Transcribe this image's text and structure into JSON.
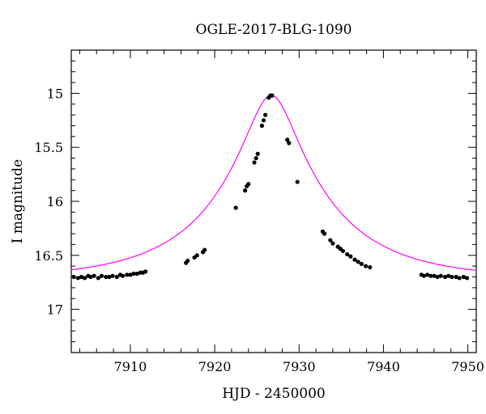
{
  "chart_data": {
    "type": "scatter",
    "title": "OGLE-2017-BLG-1090",
    "xlabel": "HJD - 2450000",
    "ylabel": "I magnitude",
    "xlim": [
      7903,
      7951
    ],
    "ylim": [
      17.4,
      14.6
    ],
    "y_inverted": true,
    "x_ticks": [
      7910,
      7920,
      7930,
      7940,
      7950
    ],
    "y_ticks": [
      15,
      15.5,
      16,
      16.5,
      17
    ],
    "x_tick_labels": [
      "7910",
      "7920",
      "7930",
      "7940",
      "7950"
    ],
    "y_tick_labels": [
      "15",
      "15.5",
      "16",
      "16.5",
      "17"
    ],
    "grid": false,
    "colors": {
      "points": "#000000",
      "model": "#ff00ff"
    },
    "model": {
      "name": "",
      "t0": 7926.7,
      "baseline_mag": 16.72,
      "peak_mag": 15.02,
      "tE": 13.3
    },
    "series": [
      {
        "name": "",
        "x": [
          7903.3,
          7903.8,
          7904.2,
          7904.6,
          7905.0,
          7905.3,
          7905.7,
          7906.2,
          7906.6,
          7907.1,
          7907.5,
          7907.9,
          7908.4,
          7908.8,
          7909.1,
          7909.6,
          7910.0,
          7910.4,
          7910.8,
          7911.2,
          7911.5,
          7911.8,
          7916.6,
          7916.8,
          7917.6,
          7917.9,
          7918.6,
          7918.8,
          7922.5,
          7923.6,
          7923.8,
          7924.0,
          7924.7,
          7924.9,
          7925.1,
          7925.6,
          7925.8,
          7926.0,
          7926.4,
          7926.6,
          7926.8,
          7928.6,
          7928.8,
          7929.8,
          7932.8,
          7933.0,
          7933.7,
          7934.0,
          7934.6,
          7934.9,
          7935.2,
          7935.7,
          7936.1,
          7936.6,
          7937.0,
          7937.4,
          7937.9,
          7938.4,
          7944.5,
          7944.8,
          7945.2,
          7945.6,
          7946.0,
          7946.4,
          7946.8,
          7947.3,
          7947.7,
          7948.1,
          7948.6,
          7949.0,
          7949.5,
          7949.9
        ],
        "y": [
          16.7,
          16.71,
          16.7,
          16.71,
          16.69,
          16.7,
          16.69,
          16.71,
          16.69,
          16.7,
          16.7,
          16.69,
          16.7,
          16.68,
          16.69,
          16.68,
          16.68,
          16.67,
          16.67,
          16.66,
          16.66,
          16.65,
          16.57,
          16.55,
          16.52,
          16.5,
          16.47,
          16.45,
          16.06,
          15.9,
          15.86,
          15.84,
          15.64,
          15.6,
          15.56,
          15.3,
          15.25,
          15.2,
          15.04,
          15.02,
          15.02,
          15.43,
          15.46,
          15.82,
          16.28,
          16.3,
          16.36,
          16.39,
          16.42,
          16.44,
          16.46,
          16.49,
          16.51,
          16.54,
          16.56,
          16.58,
          16.6,
          16.61,
          16.68,
          16.69,
          16.68,
          16.69,
          16.69,
          16.7,
          16.69,
          16.7,
          16.69,
          16.7,
          16.7,
          16.71,
          16.7,
          16.71
        ]
      }
    ]
  }
}
